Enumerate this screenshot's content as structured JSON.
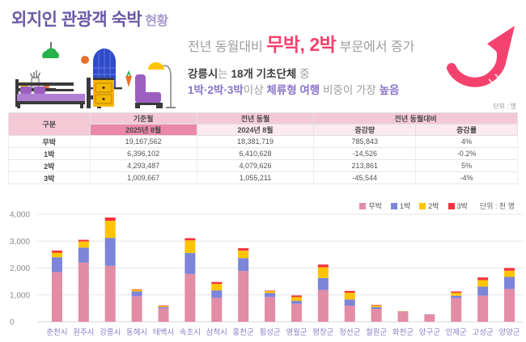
{
  "header": {
    "title": "외지인 관광객 숙박",
    "title_suffix": "현황",
    "line1_prefix": "전년 동월대비 ",
    "line1_highlight": "무박, 2박",
    "line1_suffix": " 부문에서 증가",
    "line2_bold1": "강릉시",
    "line2_gray1": "는 ",
    "line2_bold2": "18개 기초단체",
    "line2_gray2": " 중",
    "line3_purple1": "1박·2박·3박",
    "line3_gray1": "이상 ",
    "line3_purple2": "체류형 여행",
    "line3_gray2": " 비중이 가장 ",
    "line3_purple3": "높음",
    "unit_label": "단위 : 명"
  },
  "table": {
    "col_group": "구분",
    "col_base": "기준월",
    "col_base_sub": "2025년 8월",
    "col_prev": "전년 동월",
    "col_prev_sub": "2024년 8월",
    "col_yoy": "전년 동월대비",
    "col_yoy_amount": "증감량",
    "col_yoy_rate": "증감률",
    "rows": [
      {
        "label": "무박",
        "base": "19,167,562",
        "prev": "18,381,719",
        "amount": "785,843",
        "rate": "4%"
      },
      {
        "label": "1박",
        "base": "6,396,102",
        "prev": "6,410,628",
        "amount": "-14,526",
        "rate": "-0.2%"
      },
      {
        "label": "2박",
        "base": "4,293,487",
        "prev": "4,079,626",
        "amount": "213,861",
        "rate": "5%"
      },
      {
        "label": "3박",
        "base": "1,009,667",
        "prev": "1,055,211",
        "amount": "-45,544",
        "rate": "-4%"
      }
    ]
  },
  "chart_data": {
    "type": "bar",
    "stacked": true,
    "title": "",
    "xlabel": "",
    "ylabel": "",
    "unit_label": "단위 : 천 명",
    "ylim": [
      0,
      4000
    ],
    "yticks": [
      "0",
      "1,000",
      "2,000",
      "3,000",
      "4,000"
    ],
    "grid": true,
    "legend_position": "top-right",
    "categories": [
      "춘천시",
      "원주시",
      "강릉시",
      "동해시",
      "태백시",
      "속초시",
      "삼척시",
      "홍천군",
      "횡성군",
      "영월군",
      "평창군",
      "정선군",
      "철원군",
      "화천군",
      "양구군",
      "인제군",
      "고성군",
      "양양군"
    ],
    "series": [
      {
        "name": "무박",
        "color": "#e38ca6",
        "values": [
          1850,
          2200,
          2080,
          950,
          500,
          1780,
          890,
          1890,
          920,
          670,
          1180,
          600,
          480,
          380,
          270,
          880,
          970,
          1220
        ]
      },
      {
        "name": "1박",
        "color": "#7c85d9",
        "values": [
          550,
          560,
          1040,
          180,
          50,
          780,
          280,
          480,
          150,
          110,
          450,
          230,
          70,
          10,
          10,
          90,
          340,
          450
        ]
      },
      {
        "name": "2박",
        "color": "#ffc400",
        "values": [
          170,
          230,
          640,
          60,
          40,
          470,
          240,
          280,
          70,
          140,
          400,
          250,
          60,
          10,
          0,
          110,
          240,
          230
        ]
      },
      {
        "name": "3박",
        "color": "#f5333f",
        "values": [
          80,
          60,
          120,
          20,
          20,
          80,
          70,
          90,
          20,
          60,
          100,
          70,
          20,
          0,
          0,
          50,
          100,
          100
        ]
      }
    ]
  },
  "colors": {
    "title_purple": "#6a58a5",
    "title_suffix_purple": "#a79bce",
    "accent_pink": "#f4426e",
    "accent_purple": "#8a74c9",
    "table_header_pink": "#f4c9d6",
    "table_header_dark_pink": "#ea89a8",
    "table_header_light_pink": "#fbeaf0",
    "axis_label_purple": "#8b7ec6",
    "gridline": "#e6e3ea"
  }
}
